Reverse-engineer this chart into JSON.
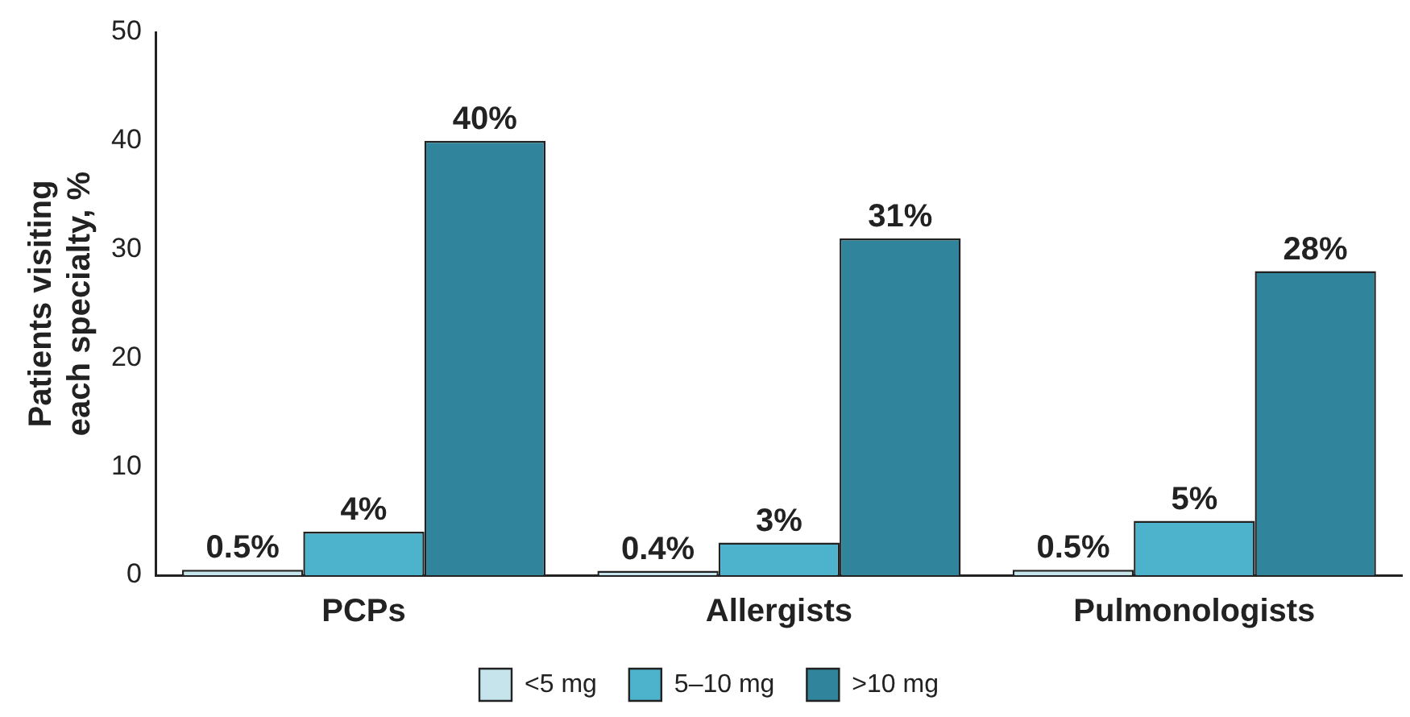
{
  "chart_data": {
    "type": "bar",
    "ylabel": "Patients visiting\neach specialty, %",
    "categories": [
      "PCPs",
      "Allergists",
      "Pulmonologists"
    ],
    "series": [
      {
        "name": "<5 mg",
        "color": "#c6e4ec",
        "values": [
          0.5,
          0.4,
          0.5
        ],
        "value_labels": [
          "0.5%",
          "0.4%",
          "0.5%"
        ]
      },
      {
        "name": "5–10 mg",
        "color": "#4db3cc",
        "values": [
          4,
          3,
          5
        ],
        "value_labels": [
          "4%",
          "3%",
          "5%"
        ]
      },
      {
        "name": ">10 mg",
        "color": "#30849b",
        "values": [
          40,
          31,
          28
        ],
        "value_labels": [
          "40%",
          "31%",
          "28%"
        ]
      }
    ],
    "ylim": [
      0,
      50
    ],
    "yticks": [
      0,
      10,
      20,
      30,
      40,
      50
    ],
    "grid": false,
    "legend": "bottom"
  }
}
